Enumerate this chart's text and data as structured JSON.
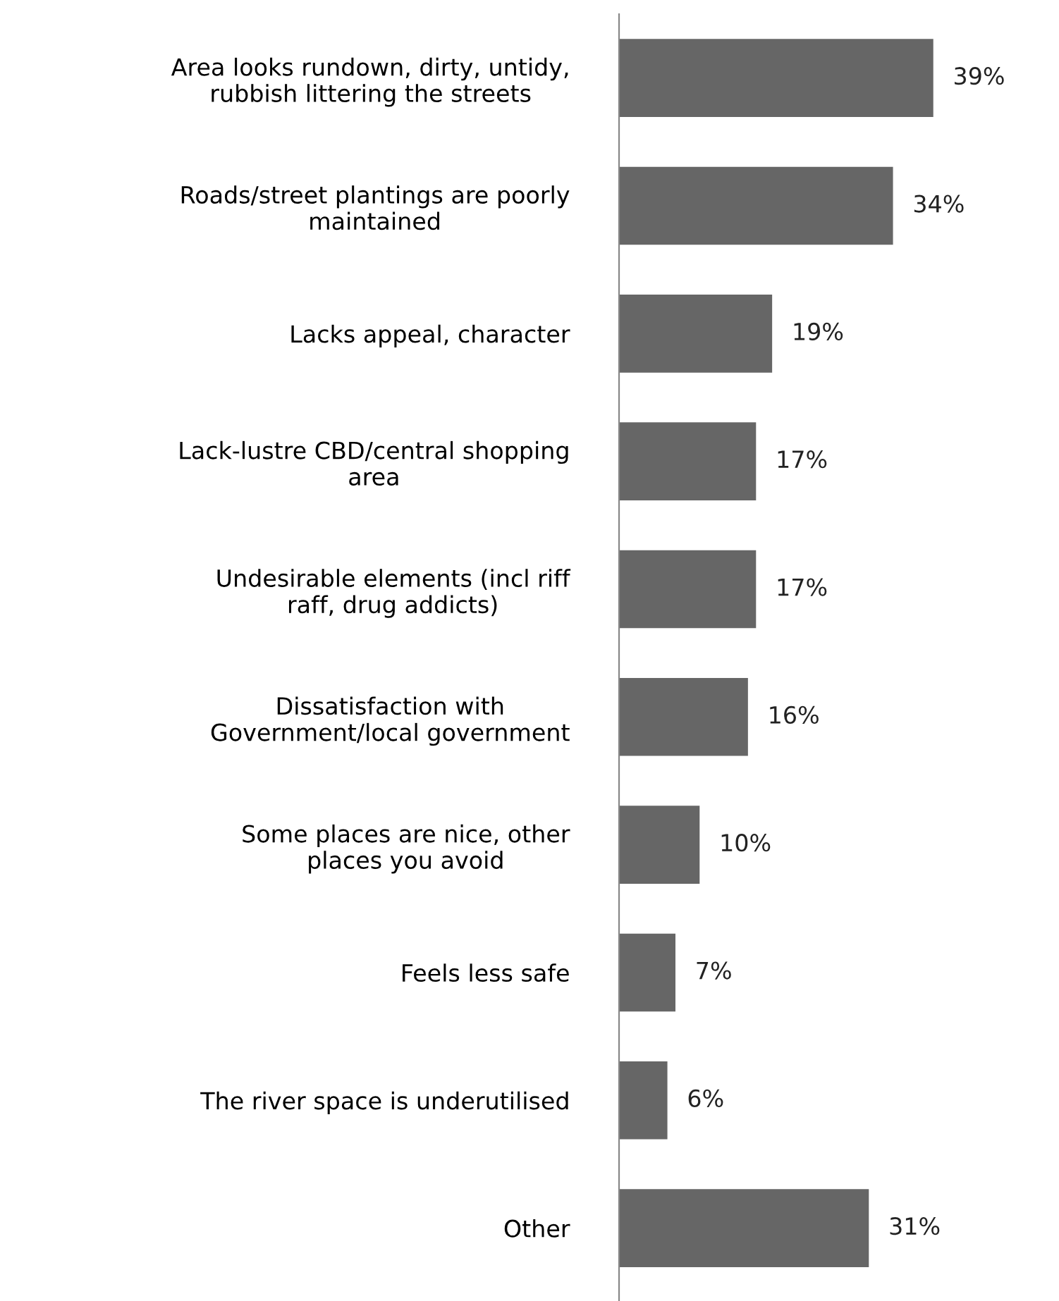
{
  "chart_data": {
    "type": "bar",
    "orientation": "horizontal",
    "categories": [
      "Area looks rundown, dirty, untidy,\nrubbish littering the streets",
      "Roads/street plantings are poorly\nmaintained",
      "Lacks appeal, character",
      "Lack-lustre CBD/central shopping\narea",
      "Undesirable elements (incl riff\nraff, drug addicts)",
      "Dissatisfaction with\nGovernment/local government",
      "Some places are nice, other\nplaces you avoid",
      "Feels less safe",
      "The river space is underutilised",
      "Other"
    ],
    "values": [
      39,
      34,
      19,
      17,
      17,
      16,
      10,
      7,
      6,
      31
    ],
    "value_labels": [
      "39%",
      "34%",
      "19%",
      "17%",
      "17%",
      "16%",
      "10%",
      "7%",
      "6%",
      "31%"
    ],
    "color": "#666666",
    "tick_labels": "y",
    "grid": false,
    "legend": false
  }
}
